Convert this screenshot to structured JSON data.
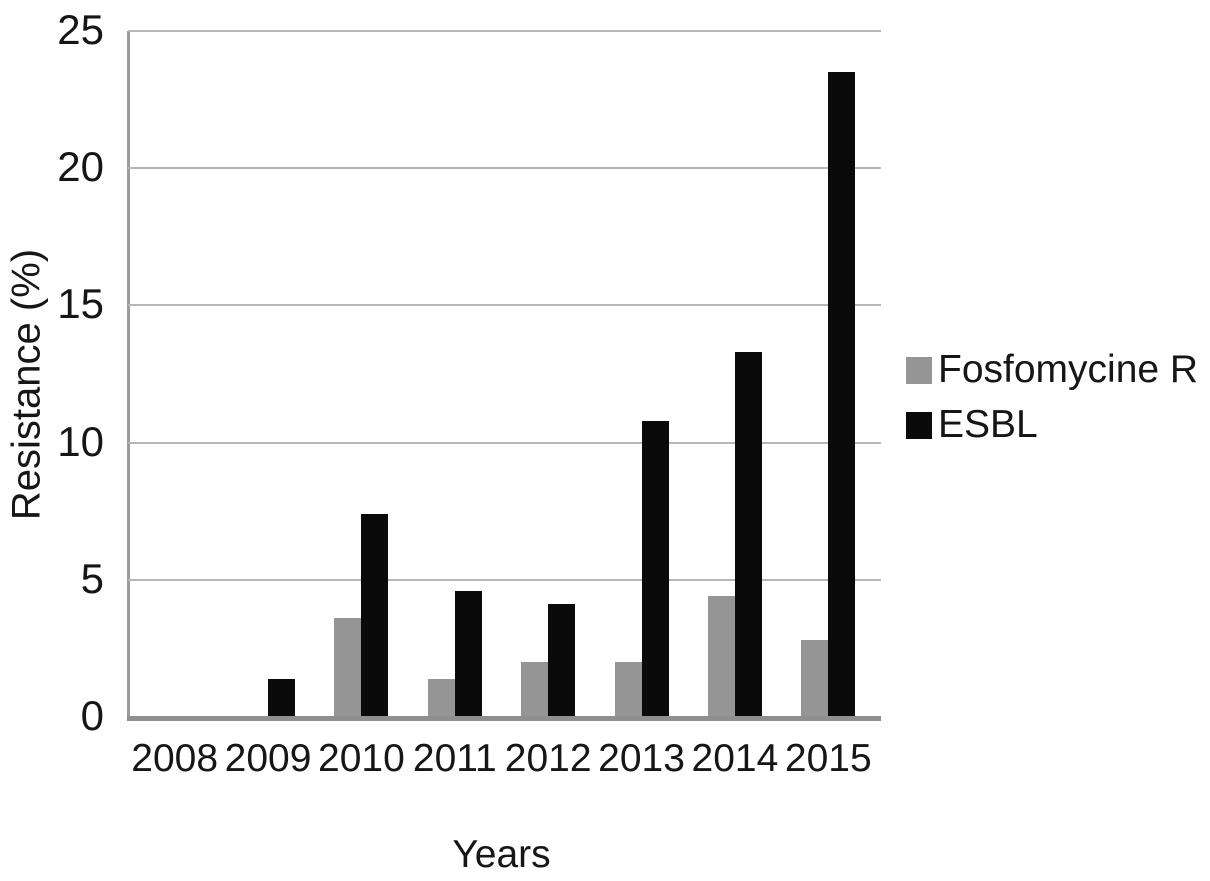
{
  "chart_data": {
    "type": "bar",
    "title": "",
    "xlabel": "Years",
    "ylabel": "Resistance (%)",
    "categories": [
      "2008",
      "2009",
      "2010",
      "2011",
      "2012",
      "2013",
      "2014",
      "2015"
    ],
    "series": [
      {
        "name": "Fosfomycine R",
        "color": "#959595",
        "values": [
          0,
          0,
          3.6,
          1.4,
          2.0,
          2.0,
          4.4,
          2.8
        ]
      },
      {
        "name": "ESBL",
        "color": "#0a0a0a",
        "values": [
          0,
          1.4,
          7.4,
          4.6,
          4.1,
          10.8,
          13.3,
          23.5
        ]
      }
    ],
    "ylim": [
      0,
      25
    ],
    "yticks": [
      0,
      5,
      10,
      15,
      20,
      25
    ],
    "grid": true,
    "gridline_color": "#b6b6b6",
    "axis_color": "#8f8f8f",
    "legend_position": "right"
  }
}
